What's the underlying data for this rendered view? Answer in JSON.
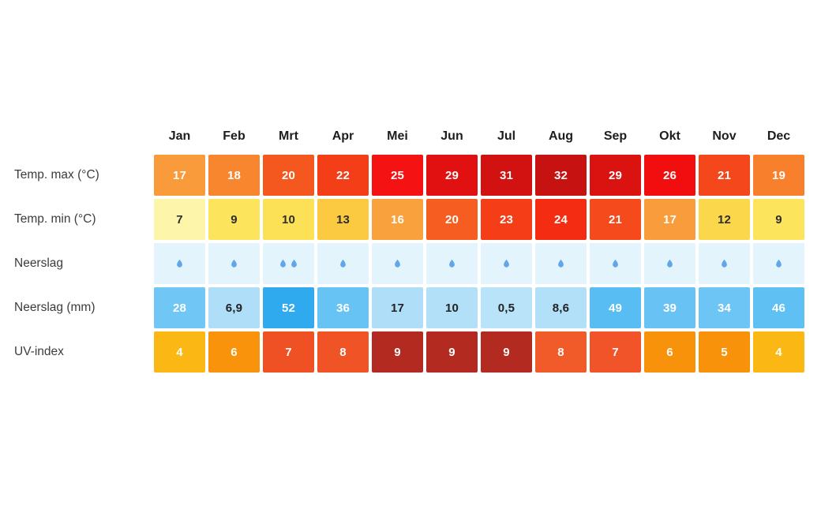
{
  "page": {
    "background": "#FFFFFF"
  },
  "table": {
    "months": [
      "Jan",
      "Feb",
      "Mrt",
      "Apr",
      "Mei",
      "Jun",
      "Jul",
      "Aug",
      "Sep",
      "Okt",
      "Nov",
      "Dec"
    ],
    "drop_color": "#60A6E8",
    "rows": [
      {
        "label": "Temp. max (°C)",
        "kind": "text",
        "cells": [
          {
            "text": "17",
            "bg": "#F99B3B",
            "fg": "#FFFFFF"
          },
          {
            "text": "18",
            "bg": "#F8862F",
            "fg": "#FFFFFF"
          },
          {
            "text": "20",
            "bg": "#F4581F",
            "fg": "#FFFFFF"
          },
          {
            "text": "22",
            "bg": "#F43E18",
            "fg": "#FFFFFF"
          },
          {
            "text": "25",
            "bg": "#F41212",
            "fg": "#FFFFFF"
          },
          {
            "text": "29",
            "bg": "#E11111",
            "fg": "#FFFFFF"
          },
          {
            "text": "31",
            "bg": "#D11211",
            "fg": "#FFFFFF"
          },
          {
            "text": "32",
            "bg": "#C61311",
            "fg": "#FFFFFF"
          },
          {
            "text": "29",
            "bg": "#DB1310",
            "fg": "#FFFFFF"
          },
          {
            "text": "26",
            "bg": "#F20E0E",
            "fg": "#FFFFFF"
          },
          {
            "text": "21",
            "bg": "#F4481C",
            "fg": "#FFFFFF"
          },
          {
            "text": "19",
            "bg": "#F8802D",
            "fg": "#FFFFFF"
          }
        ]
      },
      {
        "label": "Temp. min (°C)",
        "kind": "text",
        "cells": [
          {
            "text": "7",
            "bg": "#FDF5A9",
            "fg": "#2E2E30"
          },
          {
            "text": "9",
            "bg": "#FCE45C",
            "fg": "#2E2E30"
          },
          {
            "text": "10",
            "bg": "#FCE156",
            "fg": "#2E2E30"
          },
          {
            "text": "13",
            "bg": "#FBCA40",
            "fg": "#2E2E30"
          },
          {
            "text": "16",
            "bg": "#F9A23D",
            "fg": "#FFFFFF"
          },
          {
            "text": "20",
            "bg": "#F55D21",
            "fg": "#FFFFFF"
          },
          {
            "text": "23",
            "bg": "#F53D17",
            "fg": "#FFFFFF"
          },
          {
            "text": "24",
            "bg": "#F42D12",
            "fg": "#FFFFFF"
          },
          {
            "text": "21",
            "bg": "#F54A1C",
            "fg": "#FFFFFF"
          },
          {
            "text": "17",
            "bg": "#F99C3C",
            "fg": "#FFFFFF"
          },
          {
            "text": "12",
            "bg": "#FBD84B",
            "fg": "#2E2E30"
          },
          {
            "text": "9",
            "bg": "#FCE45C",
            "fg": "#2E2E30"
          }
        ]
      },
      {
        "label": "Neerslag",
        "kind": "drops",
        "cells": [
          {
            "drops": 1,
            "bg": "#E3F4FD"
          },
          {
            "drops": 1,
            "bg": "#E3F4FD"
          },
          {
            "drops": 2,
            "bg": "#E3F4FD"
          },
          {
            "drops": 1,
            "bg": "#E3F4FD"
          },
          {
            "drops": 1,
            "bg": "#E3F4FD"
          },
          {
            "drops": 1,
            "bg": "#E3F4FD"
          },
          {
            "drops": 1,
            "bg": "#E3F4FD"
          },
          {
            "drops": 1,
            "bg": "#E3F4FD"
          },
          {
            "drops": 1,
            "bg": "#E3F4FD"
          },
          {
            "drops": 1,
            "bg": "#E3F4FD"
          },
          {
            "drops": 1,
            "bg": "#E3F4FD"
          },
          {
            "drops": 1,
            "bg": "#E3F4FD"
          }
        ]
      },
      {
        "label": "Neerslag (mm)",
        "kind": "text",
        "cells": [
          {
            "text": "28",
            "bg": "#70C7F5",
            "fg": "#FFFFFF"
          },
          {
            "text": "6,9",
            "bg": "#AEDEF8",
            "fg": "#232325"
          },
          {
            "text": "52",
            "bg": "#2FAAEF",
            "fg": "#FFFFFF"
          },
          {
            "text": "36",
            "bg": "#66C3F4",
            "fg": "#FFFFFF"
          },
          {
            "text": "17",
            "bg": "#AEDEF8",
            "fg": "#232325"
          },
          {
            "text": "10",
            "bg": "#B2E0F8",
            "fg": "#232325"
          },
          {
            "text": "0,5",
            "bg": "#B9E3F9",
            "fg": "#232325"
          },
          {
            "text": "8,6",
            "bg": "#B2E0F8",
            "fg": "#232325"
          },
          {
            "text": "49",
            "bg": "#58BDF2",
            "fg": "#FFFFFF"
          },
          {
            "text": "39",
            "bg": "#68C3F4",
            "fg": "#FFFFFF"
          },
          {
            "text": "34",
            "bg": "#6CC5F5",
            "fg": "#FFFFFF"
          },
          {
            "text": "46",
            "bg": "#5EC0F3",
            "fg": "#FFFFFF"
          }
        ]
      },
      {
        "label": "UV-index",
        "kind": "text",
        "cells": [
          {
            "text": "4",
            "bg": "#FBB814",
            "fg": "#FFFFFF"
          },
          {
            "text": "6",
            "bg": "#F9930C",
            "fg": "#FFFFFF"
          },
          {
            "text": "7",
            "bg": "#F05124",
            "fg": "#FFFFFF"
          },
          {
            "text": "8",
            "bg": "#F05426",
            "fg": "#FFFFFF"
          },
          {
            "text": "9",
            "bg": "#B32A20",
            "fg": "#FFFFFF"
          },
          {
            "text": "9",
            "bg": "#B32A20",
            "fg": "#FFFFFF"
          },
          {
            "text": "9",
            "bg": "#B32A20",
            "fg": "#FFFFFF"
          },
          {
            "text": "8",
            "bg": "#F15A29",
            "fg": "#FFFFFF"
          },
          {
            "text": "7",
            "bg": "#F15429",
            "fg": "#FFFFFF"
          },
          {
            "text": "6",
            "bg": "#F9920B",
            "fg": "#FFFFFF"
          },
          {
            "text": "5",
            "bg": "#F9920B",
            "fg": "#FFFFFF"
          },
          {
            "text": "4",
            "bg": "#FBB814",
            "fg": "#FFFFFF"
          }
        ]
      }
    ]
  },
  "chart_data": {
    "type": "table",
    "categories": [
      "Jan",
      "Feb",
      "Mrt",
      "Apr",
      "Mei",
      "Jun",
      "Jul",
      "Aug",
      "Sep",
      "Okt",
      "Nov",
      "Dec"
    ],
    "series": [
      {
        "name": "Temp. max (°C)",
        "values": [
          17,
          18,
          20,
          22,
          25,
          29,
          31,
          32,
          29,
          26,
          21,
          19
        ]
      },
      {
        "name": "Temp. min (°C)",
        "values": [
          7,
          9,
          10,
          13,
          16,
          20,
          23,
          24,
          21,
          17,
          12,
          9
        ]
      },
      {
        "name": "Neerslag (druppel-iconen)",
        "values": [
          1,
          1,
          2,
          1,
          1,
          1,
          1,
          1,
          1,
          1,
          1,
          1
        ]
      },
      {
        "name": "Neerslag (mm)",
        "values": [
          28,
          6.9,
          52,
          36,
          17,
          10,
          0.5,
          8.6,
          49,
          39,
          34,
          46
        ]
      },
      {
        "name": "UV-index",
        "values": [
          4,
          6,
          7,
          8,
          9,
          9,
          9,
          8,
          7,
          6,
          5,
          4
        ]
      }
    ],
    "title": "",
    "xlabel": "",
    "ylabel": "",
    "legend": "none",
    "grid": "off",
    "style": "colored heatmap table, warm scale for temperature/UV, blue scale for precipitation"
  }
}
